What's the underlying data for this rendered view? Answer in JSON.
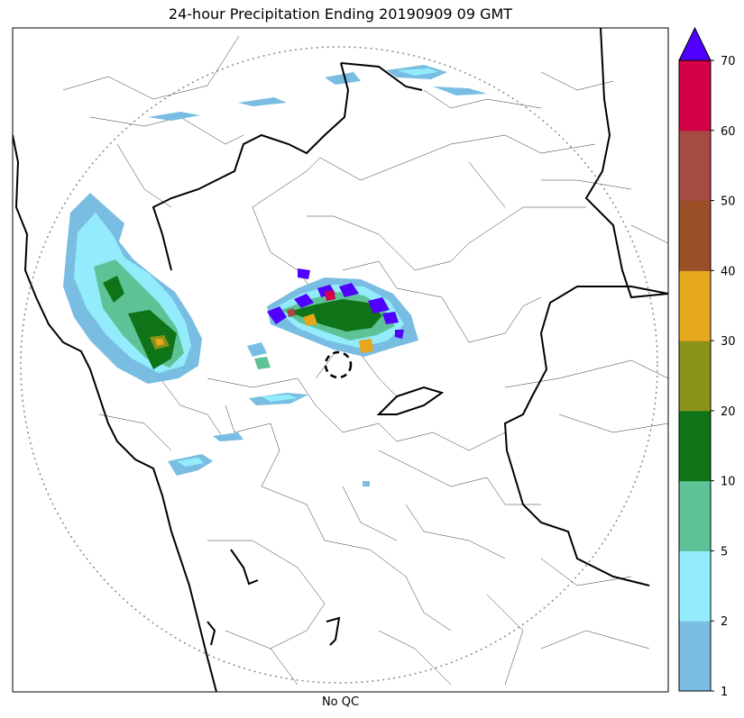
{
  "title": "24-hour Precipitation Ending 20190909 09 GMT",
  "xlabel": "No QC",
  "colorbar": {
    "levels": [
      "1",
      "2",
      "5",
      "10",
      "20",
      "30",
      "40",
      "50",
      "60",
      "70"
    ],
    "colors": [
      "#79bde2",
      "#93ecfb",
      "#5dc397",
      "#0f7417",
      "#8a9219",
      "#e5a81c",
      "#9a4f27",
      "#a64b42",
      "#d40045"
    ],
    "extend_color": "#5000ff"
  },
  "map": {
    "range_ring_style": "dotted",
    "radar_marker_style": "dashed circle"
  }
}
